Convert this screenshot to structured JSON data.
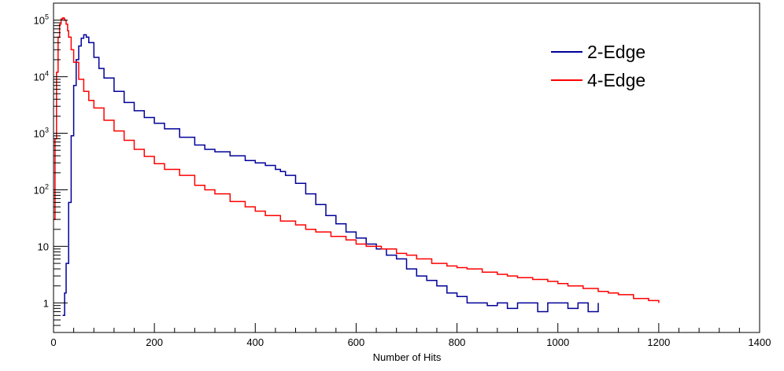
{
  "chart_data": {
    "type": "line",
    "title": "",
    "xlabel": "Number of Hits",
    "ylabel": "",
    "xlim": [
      0,
      1400
    ],
    "ylim": [
      0.3,
      200000
    ],
    "yscale": "log",
    "grid": false,
    "legend_position": "top-right",
    "x_ticks": [
      {
        "value": 0,
        "label": "0"
      },
      {
        "value": 200,
        "label": "200"
      },
      {
        "value": 400,
        "label": "400"
      },
      {
        "value": 600,
        "label": "600"
      },
      {
        "value": 800,
        "label": "800"
      },
      {
        "value": 1000,
        "label": "1000"
      },
      {
        "value": 1200,
        "label": "1200"
      },
      {
        "value": 1400,
        "label": "1400"
      }
    ],
    "y_ticks": [
      {
        "value": 1,
        "base": "1",
        "exp": ""
      },
      {
        "value": 10,
        "base": "10",
        "exp": ""
      },
      {
        "value": 100,
        "base": "10",
        "exp": "2"
      },
      {
        "value": 1000,
        "base": "10",
        "exp": "3"
      },
      {
        "value": 10000,
        "base": "10",
        "exp": "4"
      },
      {
        "value": 100000,
        "base": "10",
        "exp": "5"
      }
    ],
    "series": [
      {
        "name": "2-Edge",
        "color": "#000099",
        "x": [
          18,
          22,
          25,
          30,
          35,
          40,
          45,
          50,
          55,
          60,
          65,
          70,
          80,
          90,
          100,
          120,
          140,
          160,
          180,
          200,
          220,
          250,
          280,
          300,
          320,
          350,
          380,
          400,
          420,
          440,
          450,
          460,
          480,
          500,
          520,
          540,
          560,
          580,
          600,
          620,
          640,
          660,
          680,
          700,
          720,
          740,
          760,
          780,
          800,
          820,
          840,
          860,
          880,
          900,
          920,
          940,
          960,
          980,
          1000,
          1020,
          1040,
          1060,
          1080
        ],
        "values": [
          0.6,
          1.5,
          5,
          60,
          900,
          7000,
          20000,
          35000,
          48000,
          55000,
          50000,
          40000,
          22000,
          14000,
          9500,
          5500,
          3500,
          2500,
          1900,
          1500,
          1200,
          850,
          620,
          520,
          470,
          400,
          330,
          300,
          270,
          230,
          210,
          180,
          130,
          85,
          55,
          35,
          25,
          18,
          14,
          11,
          9,
          7,
          6,
          4,
          3,
          2.5,
          2,
          1.5,
          1.3,
          1,
          1,
          0.9,
          1,
          0.8,
          1,
          1,
          0.7,
          1,
          1,
          0.8,
          1,
          0.7,
          1
        ]
      },
      {
        "name": "4-Edge",
        "color": "#ff0000",
        "x": [
          0,
          3,
          6,
          9,
          12,
          15,
          18,
          20,
          22,
          25,
          28,
          30,
          35,
          40,
          50,
          60,
          70,
          80,
          100,
          120,
          140,
          160,
          180,
          200,
          220,
          250,
          280,
          300,
          320,
          350,
          380,
          400,
          420,
          450,
          480,
          500,
          520,
          550,
          580,
          600,
          620,
          650,
          680,
          700,
          720,
          750,
          780,
          800,
          820,
          850,
          880,
          900,
          920,
          950,
          980,
          1000,
          1020,
          1050,
          1080,
          1100,
          1120,
          1150,
          1180,
          1200
        ],
        "values": [
          30,
          800,
          12000,
          50000,
          85000,
          105000,
          110000,
          108000,
          100000,
          85000,
          65000,
          50000,
          30000,
          18000,
          9000,
          5500,
          3800,
          2800,
          1700,
          1100,
          750,
          520,
          390,
          290,
          230,
          180,
          120,
          100,
          85,
          62,
          50,
          42,
          35,
          28,
          24,
          20,
          18,
          15,
          13,
          11,
          10,
          9,
          7.5,
          7,
          6,
          5,
          4.5,
          4.2,
          4,
          3.5,
          3.2,
          3,
          2.8,
          2.6,
          2.4,
          2.2,
          2,
          1.8,
          1.6,
          1.5,
          1.4,
          1.2,
          1.1,
          1
        ]
      }
    ]
  }
}
